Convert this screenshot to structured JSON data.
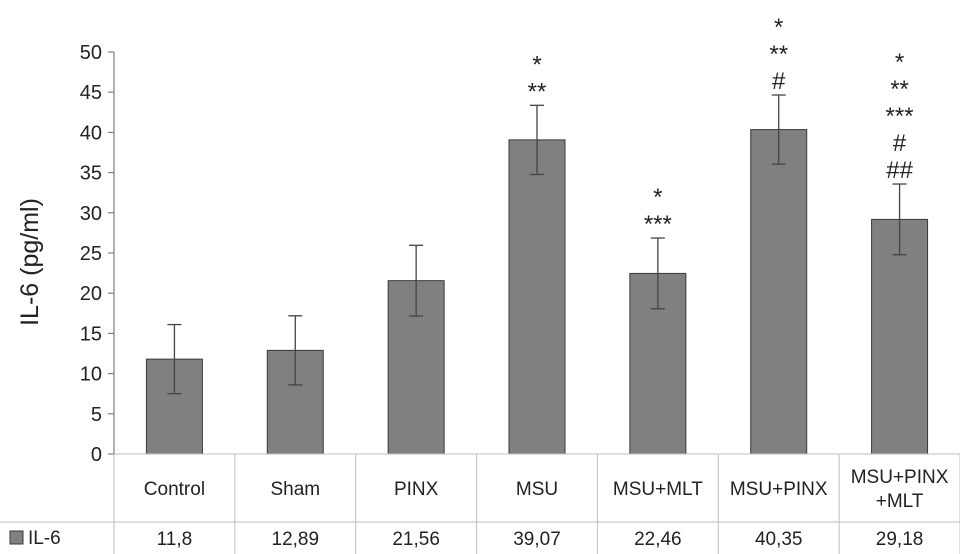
{
  "chart_data": {
    "type": "bar",
    "ylabel": "IL-6  (pg/ml)",
    "ylim": [
      0,
      50
    ],
    "yticks": [
      0,
      5,
      10,
      15,
      20,
      25,
      30,
      35,
      40,
      45,
      50
    ],
    "categories": [
      [
        "Control"
      ],
      [
        "Sham"
      ],
      [
        "PINX"
      ],
      [
        "MSU"
      ],
      [
        "MSU+MLT"
      ],
      [
        "MSU+PINX"
      ],
      [
        "MSU+PINX",
        "+MLT"
      ]
    ],
    "series": [
      {
        "name": "IL-6",
        "color": "#808080",
        "values": [
          11.8,
          12.89,
          21.56,
          39.07,
          22.46,
          40.35,
          29.18
        ],
        "value_labels": [
          "11,8",
          "12,89",
          "21,56",
          "39,07",
          "22,46",
          "40,35",
          "29,18"
        ],
        "error": [
          4.3,
          4.3,
          4.4,
          4.3,
          4.4,
          4.3,
          4.4
        ]
      }
    ],
    "annotations": [
      [],
      [],
      [],
      [
        "*",
        "**"
      ],
      [
        "*",
        "***"
      ],
      [
        "*",
        "**",
        "#"
      ],
      [
        "*",
        "**",
        "***",
        "#",
        "##"
      ]
    ],
    "grid": false,
    "legend": "data-table"
  }
}
